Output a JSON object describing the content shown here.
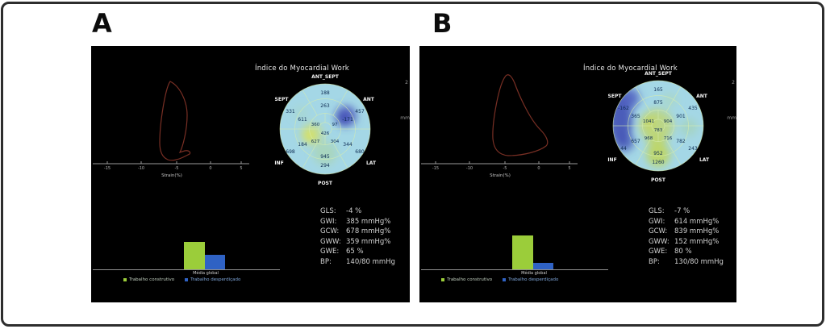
{
  "figure": {
    "panels": [
      {
        "label": "A",
        "title": "Índice do Myocardial Work",
        "bullseye": {
          "segment_labels": {
            "ant_sept": "ANT_SEPT",
            "ant": "ANT",
            "lat": "LAT",
            "post": "POST",
            "inf": "INF",
            "sept": "SEPT"
          },
          "outer": {
            "ant_sept": "188",
            "ant": "457",
            "lat": "680",
            "post": "294",
            "inf": "698",
            "sept": "331"
          },
          "mid": {
            "ant_sept": "263",
            "ant": "-171",
            "lat": "344",
            "post": "945",
            "inf": "184",
            "sept": "611"
          },
          "apical": {
            "sept": "360",
            "ant": "97",
            "inf": "627",
            "lat": "304"
          },
          "apex": "426"
        },
        "strain_axis": {
          "label": "Strain(%)",
          "ticks": [
            "-15",
            "-10",
            "-5",
            "0",
            "5"
          ]
        },
        "pressure_axis_fragments": {
          "top": "2",
          "bottom": "mm"
        },
        "metrics": [
          {
            "label": "GLS:",
            "value": "-4 %"
          },
          {
            "label": "GWI:",
            "value": "385 mmHg%"
          },
          {
            "label": "GCW:",
            "value": "678 mmHg%"
          },
          {
            "label": "GWW:",
            "value": "359 mmHg%"
          },
          {
            "label": "GWE:",
            "value": "65 %"
          },
          {
            "label": "BP:",
            "value": "140/80 mmHg"
          }
        ],
        "bar_chart": {
          "x_label": "Média global",
          "series": [
            {
              "name": "Trabalho construtivo",
              "value": 678,
              "color": "#9bcd3a"
            },
            {
              "name": "Trabalho desperdiçado",
              "value": 359,
              "color": "#2f62c4"
            }
          ]
        }
      },
      {
        "label": "B",
        "title": "Índice do Myocardial Work",
        "bullseye": {
          "segment_labels": {
            "ant_sept": "ANT_SEPT",
            "ant": "ANT",
            "lat": "LAT",
            "post": "POST",
            "inf": "INF",
            "sept": "SEPT"
          },
          "outer": {
            "ant_sept": "165",
            "ant": "435",
            "lat": "243",
            "post": "1260",
            "inf": "44",
            "sept": "-162"
          },
          "mid": {
            "ant_sept": "875",
            "ant": "901",
            "lat": "782",
            "post": "952",
            "inf": "657",
            "sept": "365"
          },
          "apical": {
            "sept": "1041",
            "ant": "904",
            "inf": "968",
            "lat": "716"
          },
          "apex": "783"
        },
        "strain_axis": {
          "label": "Strain(%)",
          "ticks": [
            "-15",
            "-10",
            "-5",
            "0",
            "5"
          ]
        },
        "pressure_axis_fragments": {
          "top": "2",
          "bottom": "mm"
        },
        "metrics": [
          {
            "label": "GLS:",
            "value": "-7 %"
          },
          {
            "label": "GWI:",
            "value": "614 mmHg%"
          },
          {
            "label": "GCW:",
            "value": "839 mmHg%"
          },
          {
            "label": "GWW:",
            "value": "152 mmHg%"
          },
          {
            "label": "GWE:",
            "value": "80 %"
          },
          {
            "label": "BP:",
            "value": "130/80 mmHg"
          }
        ],
        "bar_chart": {
          "x_label": "Média global",
          "series": [
            {
              "name": "Trabalho construtivo",
              "value": 839,
              "color": "#9bcd3a"
            },
            {
              "name": "Trabalho desperdiçado",
              "value": 152,
              "color": "#2f62c4"
            }
          ]
        }
      }
    ]
  }
}
